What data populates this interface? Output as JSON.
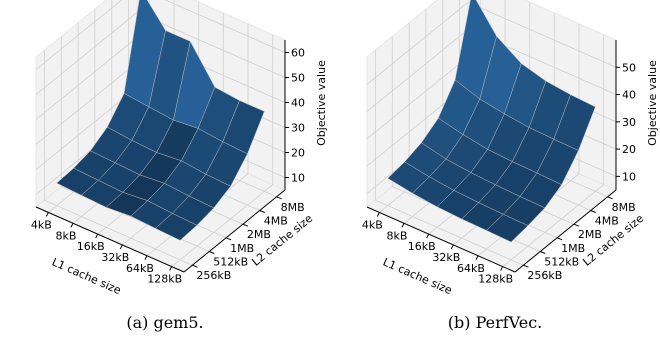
{
  "chart_data": [
    {
      "type": "surface3d",
      "caption": "(a) gem5.",
      "xlabel": "L1 cache size",
      "ylabel": "L2 cache size",
      "zlabel": "Objective value",
      "x_ticks": [
        "4kB",
        "8kB",
        "16kB",
        "32kB",
        "64kB",
        "128kB"
      ],
      "y_ticks": [
        "256kB",
        "512kB",
        "1MB",
        "2MB",
        "4MB",
        "8MB"
      ],
      "z_ticks": [
        10,
        20,
        30,
        40,
        50,
        60
      ],
      "zlim": [
        5,
        65
      ],
      "values": [
        [
          14.0,
          13.5,
          13.0,
          13.8,
          13.2,
          12.8
        ],
        [
          14.5,
          14.0,
          13.5,
          14.5,
          13.8,
          13.3
        ],
        [
          16.0,
          15.5,
          15.0,
          16.0,
          15.2,
          14.8
        ],
        [
          20.0,
          19.0,
          18.5,
          19.5,
          18.5,
          18.0
        ],
        [
          28.0,
          27.0,
          26.0,
          27.0,
          26.0,
          25.5
        ],
        [
          64.0,
          52.0,
          52.0,
          38.0,
          37.0,
          37.0
        ]
      ]
    },
    {
      "type": "surface3d",
      "caption": "(b) PerfVec.",
      "xlabel": "L1 cache size",
      "ylabel": "L2 cache size",
      "zlabel": "Objective value",
      "x_ticks": [
        "4kB",
        "8kB",
        "16kB",
        "32kB",
        "64kB",
        "128kB"
      ],
      "y_ticks": [
        "256kB",
        "512kB",
        "1MB",
        "2MB",
        "4MB",
        "8MB"
      ],
      "z_ticks": [
        10,
        20,
        30,
        40,
        50
      ],
      "zlim": [
        5,
        60
      ],
      "values": [
        [
          15.0,
          13.5,
          12.5,
          12.0,
          11.8,
          11.5
        ],
        [
          16.0,
          14.5,
          13.5,
          13.0,
          12.7,
          12.5
        ],
        [
          18.0,
          16.0,
          15.0,
          14.5,
          14.2,
          14.0
        ],
        [
          22.0,
          20.0,
          18.5,
          18.0,
          17.8,
          17.5
        ],
        [
          31.0,
          28.0,
          26.5,
          25.5,
          25.2,
          25.0
        ],
        [
          58.0,
          46.0,
          40.0,
          37.5,
          36.5,
          36.0
        ]
      ]
    }
  ]
}
